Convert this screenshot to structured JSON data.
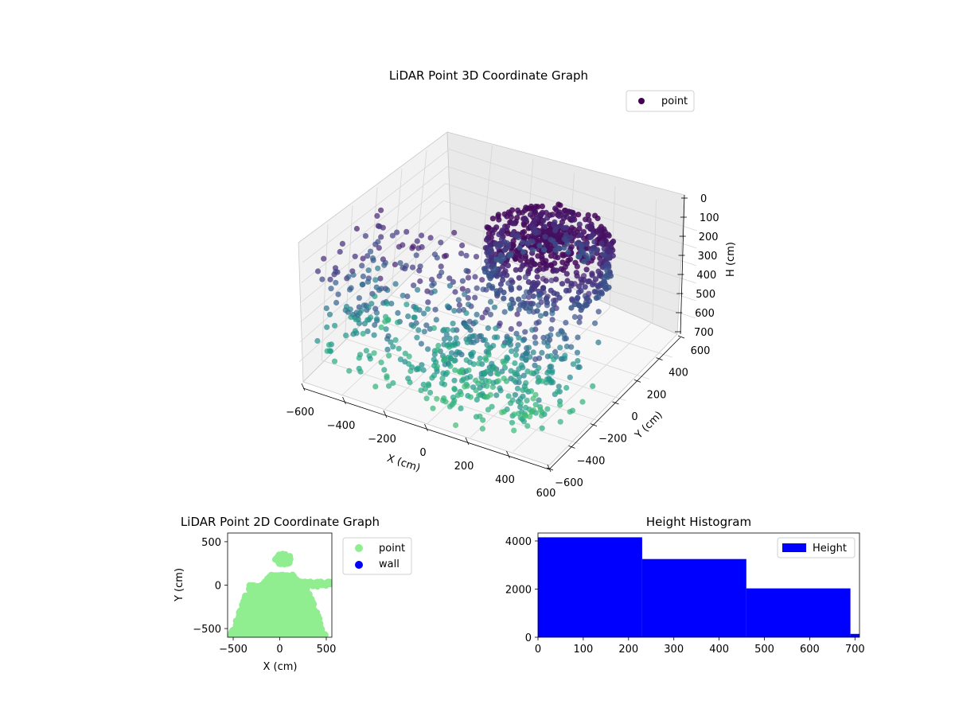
{
  "chart_data": [
    {
      "type": "scatter",
      "projection": "3d",
      "title": "LiDAR Point 3D Coordinate Graph",
      "xlabel": "X (cm)",
      "ylabel": "Y (cm)",
      "zlabel": "H (cm)",
      "xlim": [
        -600,
        600
      ],
      "ylim": [
        -600,
        600
      ],
      "zlim": [
        0,
        700
      ],
      "z_inverted": true,
      "x_ticks": [
        "−600",
        "−400",
        "−200",
        "0",
        "200",
        "400",
        "600"
      ],
      "y_ticks": [
        "−600",
        "−400",
        "−200",
        "0",
        "200",
        "400",
        "600"
      ],
      "z_ticks": [
        "0",
        "100",
        "200",
        "300",
        "400",
        "500",
        "600",
        "700"
      ],
      "colormap": "viridis",
      "legend": {
        "labels": [
          "point"
        ],
        "placement": "top-right"
      },
      "grid": true
    },
    {
      "type": "scatter",
      "title": "LiDAR Point 2D Coordinate Graph",
      "xlabel": "X (cm)",
      "ylabel": "Y (cm)",
      "xlim": [
        -560,
        560
      ],
      "ylim": [
        -600,
        600
      ],
      "x_ticks": [
        "−500",
        "0",
        "500"
      ],
      "y_ticks": [
        "−500",
        "0",
        "500"
      ],
      "series": [
        {
          "name": "point",
          "color": "#90ee90"
        },
        {
          "name": "wall",
          "color": "#0000ff"
        }
      ],
      "legend": {
        "placement": "outside-right"
      }
    },
    {
      "type": "bar",
      "histogram": true,
      "title": "Height Histogram",
      "xlabel": "",
      "ylabel": "",
      "bins": [
        [
          0,
          230
        ],
        [
          230,
          460
        ],
        [
          460,
          690
        ],
        [
          690,
          710
        ]
      ],
      "values": [
        4150,
        3250,
        2030,
        140
      ],
      "xlim": [
        0,
        710
      ],
      "ylim": [
        0,
        4330
      ],
      "x_ticks": [
        "0",
        "100",
        "200",
        "300",
        "400",
        "500",
        "600",
        "700"
      ],
      "y_ticks": [
        "0",
        "2000",
        "4000"
      ],
      "series": [
        {
          "name": "Height",
          "color": "#0000ff"
        }
      ],
      "legend": {
        "placement": "top-right"
      }
    }
  ]
}
